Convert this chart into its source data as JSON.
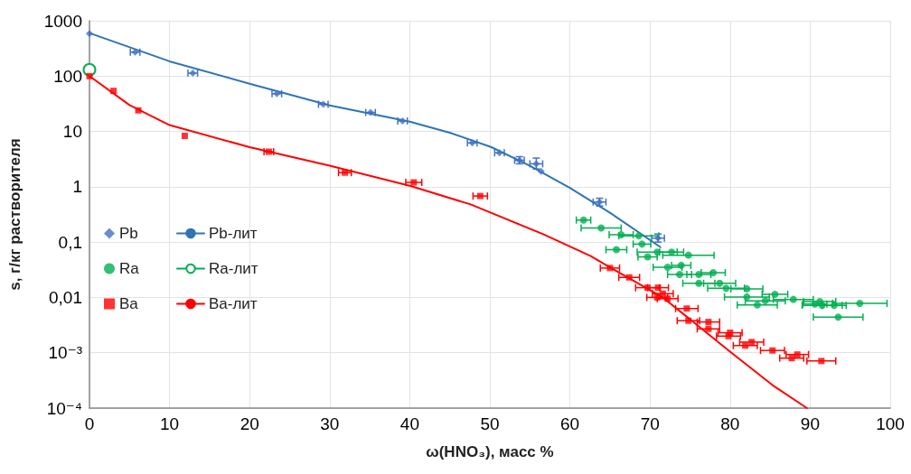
{
  "chart_data": {
    "type": "scatter",
    "xlabel": "ω(HNO₃), масс %",
    "ylabel": "s, г/кг растворителя",
    "log": "y",
    "grid": true,
    "legend": "left",
    "line_style": "solid",
    "xlim": [
      0,
      100
    ],
    "xticks": [
      0,
      10,
      20,
      30,
      40,
      50,
      60,
      70,
      80,
      90,
      100
    ],
    "ylim": [
      0.0001,
      1000
    ],
    "yticks": [
      {
        "value": 0.0001,
        "label": "10⁻⁴"
      },
      {
        "value": 0.001,
        "label": "10⁻³"
      },
      {
        "value": 0.01,
        "label": "0,01"
      },
      {
        "value": 0.1,
        "label": "0,1"
      },
      1,
      10,
      100,
      1000
    ],
    "series": [
      {
        "name": "Pb",
        "marker": "diamond",
        "color": "#4472c4",
        "x": [
          0,
          5.7,
          12.9,
          23.4,
          29.2,
          35.1,
          39.1,
          47.8,
          51.2,
          53.7,
          55.8,
          56.4,
          63.7,
          71.0
        ],
        "values": [
          585,
          270,
          113,
          48,
          31,
          22,
          15.5,
          6.2,
          4.1,
          3.0,
          2.6,
          1.9,
          0.53,
          0.118
        ],
        "xerrors": [
          null,
          0.6,
          0.6,
          0.6,
          0.6,
          0.6,
          0.6,
          0.6,
          0.6,
          0.6,
          0.8,
          null,
          0.8,
          0.8
        ],
        "errors": [
          null,
          null,
          null,
          null,
          null,
          null,
          null,
          null,
          null,
          [
            2.6,
            3.5
          ],
          [
            2.1,
            3.3
          ],
          null,
          [
            0.45,
            0.62
          ],
          [
            0.1,
            0.14
          ]
        ]
      },
      {
        "name": "Pb-лит",
        "type": "line",
        "marker": "none",
        "color": "#2e75b6",
        "x": [
          0,
          10,
          20,
          30,
          40,
          45,
          50.2,
          55,
          60,
          65,
          71.3
        ],
        "values": [
          600,
          185,
          73,
          29.5,
          15,
          9.5,
          5.2,
          2.4,
          0.95,
          0.34,
          0.081
        ]
      },
      {
        "name": "Ra",
        "marker": "circle",
        "color": "#00b050",
        "x": [
          61.7,
          63.9,
          66.4,
          68.6,
          69.0,
          65.8,
          70.9,
          72.7,
          74.8,
          69.7,
          72.2,
          73.9,
          73.7,
          76.1,
          77.9,
          76.1,
          78.7,
          79.5,
          82.1,
          85.6,
          82.1,
          87.9,
          84.4,
          83.4,
          90.6,
          91.5,
          93.0,
          96.2,
          93.5,
          91.2
        ],
        "values": [
          0.25,
          0.18,
          0.136,
          0.13,
          0.092,
          0.073,
          0.066,
          0.066,
          0.058,
          0.054,
          0.035,
          0.038,
          0.026,
          0.026,
          0.028,
          0.018,
          0.018,
          0.0147,
          0.0143,
          0.0114,
          0.0102,
          0.0092,
          0.0087,
          0.0073,
          0.0076,
          0.0072,
          0.0072,
          0.0078,
          0.0044,
          0.0084
        ],
        "xerrors": [
          0.9,
          2.5,
          1.5,
          2.5,
          1.1,
          1.3,
          2.5,
          1.5,
          3.2,
          1.2,
          1.8,
          1.2,
          1.5,
          1.5,
          1.5,
          2.0,
          2.0,
          2.3,
          2.0,
          1.6,
          2.8,
          2.5,
          2.5,
          2.5,
          1.5,
          2.5,
          1.5,
          3.4,
          3.1,
          2.0
        ]
      },
      {
        "name": "Ra-лит",
        "type": "line",
        "marker": "circle",
        "color": "#00b050",
        "x": [
          0
        ],
        "values": [
          130
        ]
      },
      {
        "name": "Ba",
        "marker": "square",
        "color": "#ff0000",
        "x": [
          0,
          3.0,
          6.1,
          11.9,
          22.4,
          31.9,
          40.5,
          48.8,
          65.0,
          67.4,
          69.7,
          71.0,
          71.6,
          72.2,
          70.9,
          74.6,
          74.8,
          77.3,
          77.3,
          80.0,
          79.8,
          82.7,
          81.9,
          85.3,
          88.4,
          87.7,
          91.4
        ],
        "values": [
          100,
          54,
          24,
          8.3,
          4.3,
          1.8,
          1.2,
          0.68,
          0.034,
          0.023,
          0.015,
          0.015,
          0.0117,
          0.0095,
          0.01,
          0.0063,
          0.0038,
          0.0036,
          0.0027,
          0.0023,
          0.002,
          0.00156,
          0.00135,
          0.0011,
          0.00093,
          0.0008,
          0.00071
        ],
        "xerrors": [
          null,
          null,
          null,
          null,
          0.6,
          0.8,
          1.0,
          0.9,
          1.2,
          1.3,
          1.5,
          1.3,
          1.3,
          1.3,
          1.3,
          1.4,
          1.4,
          1.4,
          1.4,
          1.5,
          1.5,
          1.5,
          1.5,
          1.5,
          1.4,
          1.5,
          1.8
        ]
      },
      {
        "name": "Ba-лит",
        "type": "line",
        "marker": "none",
        "color": "#ff0000",
        "x": [
          0,
          5,
          10,
          20,
          30,
          40.1,
          47.6,
          56.6,
          62.6,
          65,
          71.6,
          80,
          85.3,
          89.6
        ],
        "values": [
          100,
          30,
          13,
          5.2,
          2.4,
          1.03,
          0.48,
          0.14,
          0.056,
          0.035,
          0.01,
          0.00105,
          0.00026,
          0.0001
        ]
      }
    ]
  }
}
